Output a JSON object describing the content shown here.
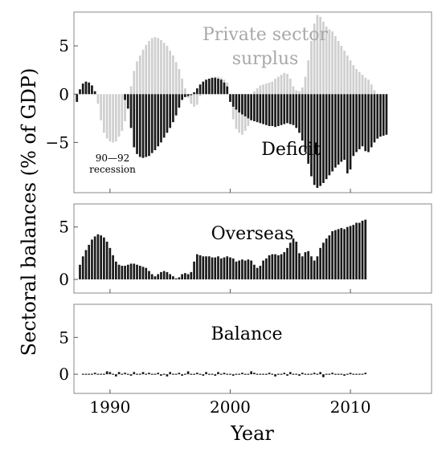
{
  "chart_data": {
    "type": "bar",
    "ylabel": "Sectoral balances (% of GDP)",
    "xlabel": "Year",
    "x_ticks": [
      1990,
      2000,
      2010
    ],
    "x_range": [
      1987.0,
      2016.75
    ],
    "colors": {
      "private": "#cfcfcf",
      "deficit": "#1a1a1a",
      "overseas": "#1a1a1a",
      "balance": "#1a1a1a",
      "frame": "#888888"
    },
    "panels": [
      {
        "id": "sectoral",
        "ylim": [
          -10.2,
          8.5
        ],
        "y_ticks": [
          5,
          0,
          -5
        ],
        "annotations": [
          {
            "text": "Private sector",
            "color": "grey"
          },
          {
            "text": "surplus",
            "color": "grey"
          },
          {
            "text": "Deficit",
            "color": "black"
          },
          {
            "text": "90—92",
            "color": "black"
          },
          {
            "text": "recession",
            "color": "black"
          }
        ],
        "series": [
          {
            "name": "Private sector surplus",
            "start_year": 1987.25,
            "quarter_step": 0.25,
            "values": [
              -0.8,
              0.5,
              1.1,
              1.3,
              1.2,
              0.9,
              0.3,
              -1.0,
              -2.7,
              -4.0,
              -4.6,
              -4.9,
              -5.0,
              -4.9,
              -4.4,
              -3.8,
              -2.8,
              -1.0,
              0.8,
              2.4,
              3.4,
              4.0,
              4.6,
              5.1,
              5.5,
              5.8,
              5.9,
              5.8,
              5.6,
              5.3,
              5.0,
              4.5,
              4.0,
              3.3,
              2.6,
              1.6,
              0.6,
              -0.4,
              -1.0,
              -1.3,
              -1.1,
              -0.2,
              0.6,
              1.1,
              1.3,
              1.6,
              1.8,
              1.8,
              1.7,
              1.5,
              1.2,
              -0.8,
              -2.6,
              -3.6,
              -4.0,
              -4.2,
              -3.8,
              -3.3,
              -1.6,
              0.3,
              0.6,
              0.9,
              1.0,
              1.1,
              1.2,
              1.3,
              1.6,
              1.8,
              2.0,
              2.2,
              2.1,
              1.6,
              0.8,
              0.4,
              0.3,
              0.7,
              1.8,
              3.5,
              5.5,
              7.3,
              8.2,
              8.0,
              7.5,
              7.0,
              6.7,
              6.5,
              6.0,
              5.5,
              5.0,
              4.5,
              4.0,
              3.5,
              3.0,
              2.6,
              2.3,
              2.0,
              1.7,
              1.5,
              1.0,
              0.4,
              -0.3,
              -0.8,
              -1.2,
              -1.5
            ]
          },
          {
            "name": "Deficit",
            "start_year": 1987.25,
            "quarter_step": 0.25,
            "values": [
              -0.8,
              0.5,
              1.1,
              1.3,
              1.2,
              0.9,
              0.3,
              0,
              0,
              0,
              0,
              0,
              0,
              0,
              0,
              0,
              -0.6,
              -1.5,
              -3.5,
              -5.5,
              -6.2,
              -6.5,
              -6.6,
              -6.5,
              -6.4,
              -6.1,
              -5.8,
              -5.4,
              -5.0,
              -4.5,
              -4.0,
              -3.5,
              -2.9,
              -2.2,
              -1.4,
              -0.6,
              -0.3,
              -0.2,
              -0.1,
              0.2,
              0.6,
              1.0,
              1.3,
              1.5,
              1.6,
              1.7,
              1.7,
              1.6,
              1.5,
              1.2,
              0.8,
              -0.8,
              -1.3,
              -1.6,
              -1.9,
              -2.1,
              -2.3,
              -2.5,
              -2.7,
              -2.8,
              -2.9,
              -3.0,
              -3.1,
              -3.2,
              -3.3,
              -3.3,
              -3.4,
              -3.3,
              -3.2,
              -3.1,
              -3.0,
              -3.1,
              -3.2,
              -3.5,
              -4.0,
              -4.8,
              -6.0,
              -7.2,
              -8.5,
              -9.4,
              -9.7,
              -9.5,
              -9.2,
              -8.8,
              -8.4,
              -8.0,
              -7.6,
              -7.3,
              -7.0,
              -6.8,
              -8.2,
              -7.8,
              -6.4,
              -6.0,
              -5.7,
              -5.4,
              -5.9,
              -6.0,
              -5.5,
              -5.0,
              -4.6,
              -4.4,
              -4.3,
              -4.2
            ]
          }
        ]
      },
      {
        "id": "overseas",
        "ylim": [
          -1.3,
          7.2
        ],
        "y_ticks": [
          5,
          0
        ],
        "label": "Overseas",
        "series": [
          {
            "name": "Overseas",
            "start_year": 1987.5,
            "quarter_step": 0.25,
            "values": [
              1.4,
              2.2,
              2.8,
              3.3,
              3.8,
              4.1,
              4.3,
              4.2,
              4.0,
              3.6,
              3.0,
              2.3,
              1.7,
              1.4,
              1.3,
              1.3,
              1.4,
              1.5,
              1.5,
              1.4,
              1.3,
              1.2,
              1.1,
              0.8,
              0.5,
              0.3,
              0.5,
              0.7,
              0.8,
              0.7,
              0.5,
              0.3,
              0.1,
              0.2,
              0.5,
              0.6,
              0.5,
              0.7,
              1.7,
              2.4,
              2.3,
              2.2,
              2.2,
              2.2,
              2.1,
              2.1,
              2.2,
              2.0,
              2.1,
              2.2,
              2.1,
              2.0,
              1.7,
              1.8,
              1.9,
              1.8,
              1.9,
              1.8,
              1.4,
              1.1,
              1.3,
              1.8,
              2.0,
              2.3,
              2.4,
              2.4,
              2.3,
              2.4,
              2.6,
              3.0,
              3.5,
              3.9,
              3.6,
              2.5,
              2.2,
              2.6,
              2.7,
              2.2,
              1.8,
              2.2,
              3.0,
              3.5,
              3.9,
              4.2,
              4.6,
              4.7,
              4.8,
              4.9,
              4.8,
              5.0,
              5.1,
              5.2,
              5.4,
              5.4,
              5.6,
              5.7
            ]
          }
        ]
      },
      {
        "id": "balance",
        "ylim": [
          -2.6,
          9.5
        ],
        "y_ticks": [
          5,
          0
        ],
        "label": "Balance",
        "series": [
          {
            "name": "Balance",
            "start_year": 1987.75,
            "quarter_step": 0.25,
            "values": [
              0.1,
              0,
              0.1,
              -0.1,
              0.2,
              0,
              0.1,
              0.1,
              0.4,
              0.3,
              0,
              -0.3,
              0.3,
              0,
              0.2,
              0,
              -0.2,
              0.3,
              -0.1,
              0.1,
              0.3,
              0,
              0.2,
              0,
              0,
              0.2,
              -0.2,
              0.1,
              -0.3,
              0.3,
              0,
              -0.1,
              0.2,
              -0.2,
              0.1,
              0.4,
              0,
              -0.1,
              0.2,
              0,
              -0.2,
              0.3,
              0,
              0.1,
              -0.2,
              0.3,
              0,
              0.2,
              0,
              0.1,
              -0.2,
              0,
              0.1,
              0.2,
              0,
              -0.1,
              0.4,
              0.2,
              0,
              0.1,
              -0.1,
              0,
              0.2,
              0,
              -0.3,
              0.1,
              0,
              0.2,
              -0.2,
              0.3,
              0,
              0.1,
              -0.2,
              0.2,
              0,
              -0.1,
              0.1,
              0.2,
              0,
              0.3,
              -0.4,
              0.1,
              0,
              0.2,
              0,
              -0.1,
              0.1,
              -0.2,
              0,
              0.2,
              0,
              0,
              0.1,
              0,
              0.2
            ]
          }
        ]
      }
    ]
  }
}
